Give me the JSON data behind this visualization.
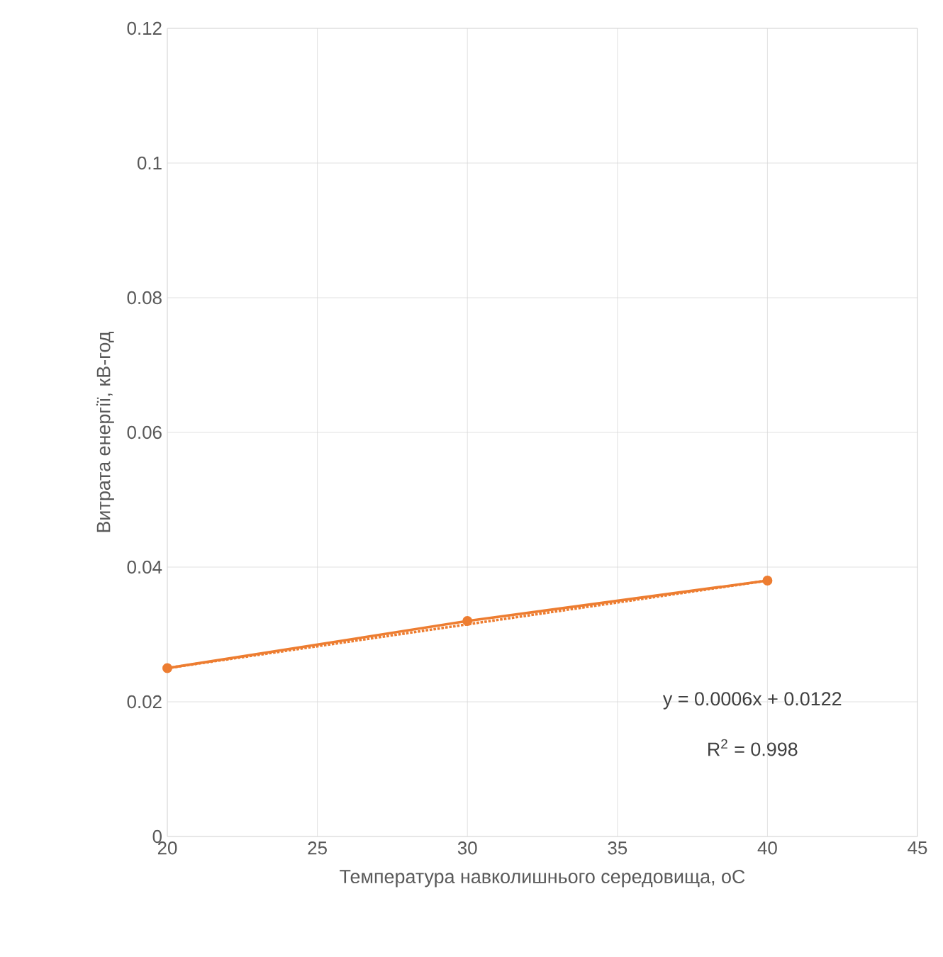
{
  "chart_data": {
    "type": "line",
    "xlabel": "Температура навколишнього середовища, оС",
    "ylabel": "Витрата енергії, кВ-год",
    "x": [
      20,
      30,
      40
    ],
    "series": [
      {
        "color": "#ed7d31",
        "values": [
          0.025,
          0.032,
          0.038
        ],
        "marker": "circle",
        "line_style": "solid"
      },
      {
        "type": "line",
        "x": [
          20,
          40
        ],
        "color": "#ed7d31",
        "values": [
          0.025,
          0.038
        ],
        "marker": "none",
        "line_style": "dotted"
      }
    ],
    "xlim": [
      20,
      45
    ],
    "xticks": [
      20,
      25,
      30,
      35,
      40,
      45
    ],
    "ylim": [
      0,
      0.12
    ],
    "yticks": [
      0,
      0.02,
      0.04,
      0.06,
      0.08,
      0.1,
      0.12
    ],
    "grid": true,
    "annotations": [
      "y = 0.0006x + 0.0122",
      "R$^{2}$ = 0.998"
    ]
  }
}
